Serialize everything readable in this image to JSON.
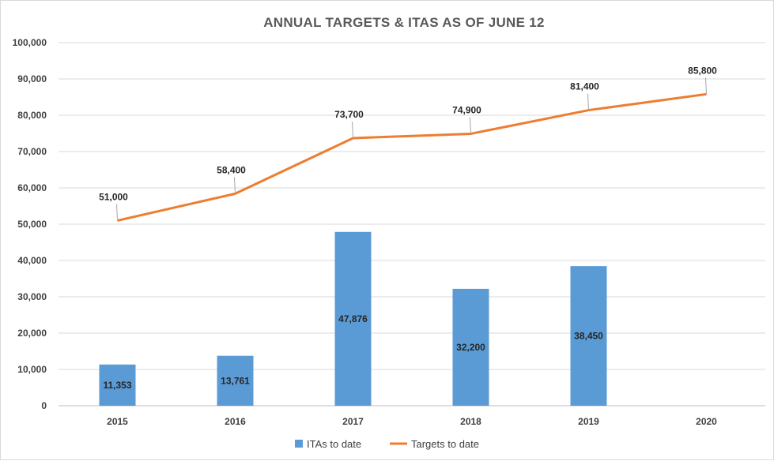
{
  "chart_data": {
    "type": "bar",
    "title": "ANNUAL TARGETS & ITAS AS OF JUNE 12",
    "categories": [
      "2015",
      "2016",
      "2017",
      "2018",
      "2019",
      "2020"
    ],
    "ylim": [
      0,
      100000
    ],
    "yticks": [
      "0",
      "10,000",
      "20,000",
      "30,000",
      "40,000",
      "50,000",
      "60,000",
      "70,000",
      "80,000",
      "90,000",
      "100,000"
    ],
    "grid": true,
    "legend_position": "bottom",
    "series": [
      {
        "name": "ITAs to date",
        "kind": "bar",
        "color": "#5b9bd5",
        "values": [
          11353,
          13761,
          47876,
          32200,
          38450,
          null
        ],
        "labels": [
          "11,353",
          "13,761",
          "47,876",
          "32,200",
          "38,450",
          ""
        ]
      },
      {
        "name": "Targets to date",
        "kind": "line",
        "color": "#ed7d31",
        "values": [
          51000,
          58400,
          73700,
          74900,
          81400,
          85800
        ],
        "labels": [
          "51,000",
          "58,400",
          "73,700",
          "74,900",
          "81,400",
          "85,800"
        ]
      }
    ]
  }
}
